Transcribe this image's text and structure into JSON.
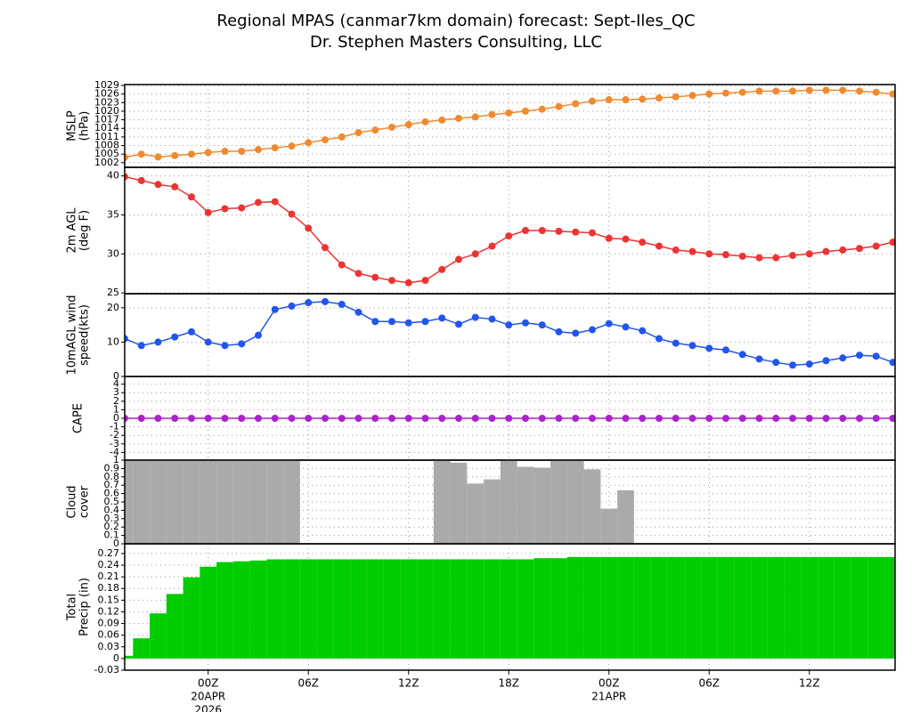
{
  "title": "Regional MPAS (canmar7km domain) forecast: Sept-Iles_QC",
  "subtitle": "Dr. Stephen Masters Consulting, LLC",
  "chart_data": [
    {
      "type": "line",
      "ylabel": [
        "MSLP",
        "(hPa)"
      ],
      "color": "#f08a30",
      "ylim": [
        1000.4,
        1029.3
      ],
      "yticks": [
        1002,
        1005,
        1008,
        1011,
        1014,
        1017,
        1020,
        1023,
        1026,
        1029
      ],
      "grid": true,
      "values": [
        1003.9,
        1005,
        1004,
        1004.5,
        1005,
        1005.6,
        1006,
        1006,
        1006.6,
        1007.2,
        1007.8,
        1009,
        1010,
        1011,
        1012.5,
        1013.4,
        1014.4,
        1015.3,
        1016.3,
        1016.9,
        1017.5,
        1018,
        1018.8,
        1019.4,
        1020,
        1020.7,
        1021.6,
        1022.6,
        1023.5,
        1024,
        1024,
        1024.2,
        1024.6,
        1025,
        1025.5,
        1026,
        1026.3,
        1026.6,
        1027,
        1027,
        1027,
        1027.3,
        1027.3,
        1027.3,
        1027,
        1026.6,
        1026
      ]
    },
    {
      "type": "line",
      "ylabel": [
        "2m AGL",
        "(deg F)"
      ],
      "color": "#ee3333",
      "ylim": [
        24.9,
        41.1
      ],
      "yticks": [
        25,
        30,
        35,
        40
      ],
      "grid": true,
      "values": [
        39.9,
        39.4,
        38.9,
        38.6,
        37.3,
        35.3,
        35.8,
        35.9,
        36.6,
        36.7,
        35.1,
        33.3,
        30.8,
        28.6,
        27.5,
        27.0,
        26.6,
        26.3,
        26.6,
        28.0,
        29.3,
        30.0,
        31.0,
        32.3,
        33.0,
        33.0,
        32.9,
        32.8,
        32.7,
        32.0,
        31.9,
        31.5,
        31.0,
        30.5,
        30.3,
        30.0,
        29.9,
        29.7,
        29.5,
        29.5,
        29.8,
        30.0,
        30.3,
        30.5,
        30.7,
        31.0,
        31.5
      ]
    },
    {
      "type": "line",
      "ylabel": [
        "10mAGL wind",
        "speed(kts)"
      ],
      "color": "#2255ee",
      "ylim": [
        0,
        24.1
      ],
      "yticks": [
        0,
        10,
        20
      ],
      "grid": true,
      "values": [
        11,
        9,
        10,
        11.5,
        13,
        10,
        9,
        9.5,
        12,
        19.5,
        20.5,
        21.5,
        21.8,
        21,
        18.7,
        16,
        16,
        15.6,
        16,
        17,
        15.2,
        17.2,
        16.7,
        15,
        15.6,
        15,
        13,
        12.6,
        13.6,
        15.4,
        14.4,
        13.3,
        11,
        9.7,
        9,
        8.2,
        7.7,
        6.4,
        5.1,
        4.1,
        3.3,
        3.6,
        4.6,
        5.4,
        6.2,
        5.9,
        4.1
      ]
    },
    {
      "type": "line",
      "ylabel": [
        "CAPE"
      ],
      "color": "#aa22cc",
      "ylim": [
        -4.9,
        4.9
      ],
      "yticks": [
        -4,
        -3,
        -2,
        -1,
        0,
        1,
        2,
        3,
        4
      ],
      "grid": true,
      "values": [
        0,
        0,
        0,
        0,
        0,
        0,
        0,
        0,
        0,
        0,
        0,
        0,
        0,
        0,
        0,
        0,
        0,
        0,
        0,
        0,
        0,
        0,
        0,
        0,
        0,
        0,
        0,
        0,
        0,
        0,
        0,
        0,
        0,
        0,
        0,
        0,
        0,
        0,
        0,
        0,
        0,
        0,
        0,
        0,
        0,
        0,
        0
      ]
    },
    {
      "type": "bar",
      "ylabel": [
        "Cloud",
        "cover"
      ],
      "color": "#aaaaaa",
      "ylim": [
        0,
        1
      ],
      "yticks": [
        0,
        0.1,
        0.2,
        0.3,
        0.4,
        0.5,
        0.6,
        0.7,
        0.8,
        0.9,
        1
      ],
      "grid": true,
      "values": [
        1,
        1,
        1,
        1,
        1,
        1,
        1,
        1,
        1,
        1,
        1,
        0,
        0,
        0,
        0,
        0,
        0,
        0,
        0,
        1,
        0.97,
        0.72,
        0.77,
        1,
        0.92,
        0.91,
        1,
        1,
        0.89,
        0.42,
        0.64,
        0,
        0,
        0,
        0,
        0,
        0,
        0,
        0,
        0,
        0,
        0,
        0,
        0,
        0,
        0,
        0
      ]
    },
    {
      "type": "bar",
      "ylabel": [
        "Total",
        "Precip (in)"
      ],
      "color": "#00cc00",
      "ylim": [
        -0.03,
        0.295
      ],
      "yticks": [
        -0.03,
        0,
        0.03,
        0.06,
        0.09,
        0.12,
        0.15,
        0.18,
        0.21,
        0.24,
        0.27
      ],
      "grid": true,
      "values": [
        0.007,
        0.052,
        0.116,
        0.166,
        0.209,
        0.236,
        0.248,
        0.25,
        0.252,
        0.255,
        0.255,
        0.255,
        0.255,
        0.255,
        0.255,
        0.255,
        0.255,
        0.255,
        0.255,
        0.255,
        0.255,
        0.255,
        0.255,
        0.255,
        0.255,
        0.258,
        0.258,
        0.261,
        0.261,
        0.261,
        0.261,
        0.261,
        0.261,
        0.261,
        0.261,
        0.261,
        0.261,
        0.261,
        0.261,
        0.261,
        0.261,
        0.261,
        0.261,
        0.261,
        0.261,
        0.261,
        0.261
      ],
      "categories": [
        null,
        null,
        null,
        null,
        null,
        [
          "00Z",
          "20APR",
          "2026"
        ],
        null,
        null,
        null,
        null,
        null,
        [
          "06Z"
        ],
        null,
        null,
        null,
        null,
        null,
        [
          "12Z"
        ],
        null,
        null,
        null,
        null,
        null,
        [
          "18Z"
        ],
        null,
        null,
        null,
        null,
        null,
        [
          "00Z",
          "21APR"
        ],
        null,
        null,
        null,
        null,
        null,
        [
          "06Z"
        ],
        null,
        null,
        null,
        null,
        null,
        [
          "12Z"
        ],
        null,
        null,
        null,
        null,
        null
      ]
    }
  ]
}
